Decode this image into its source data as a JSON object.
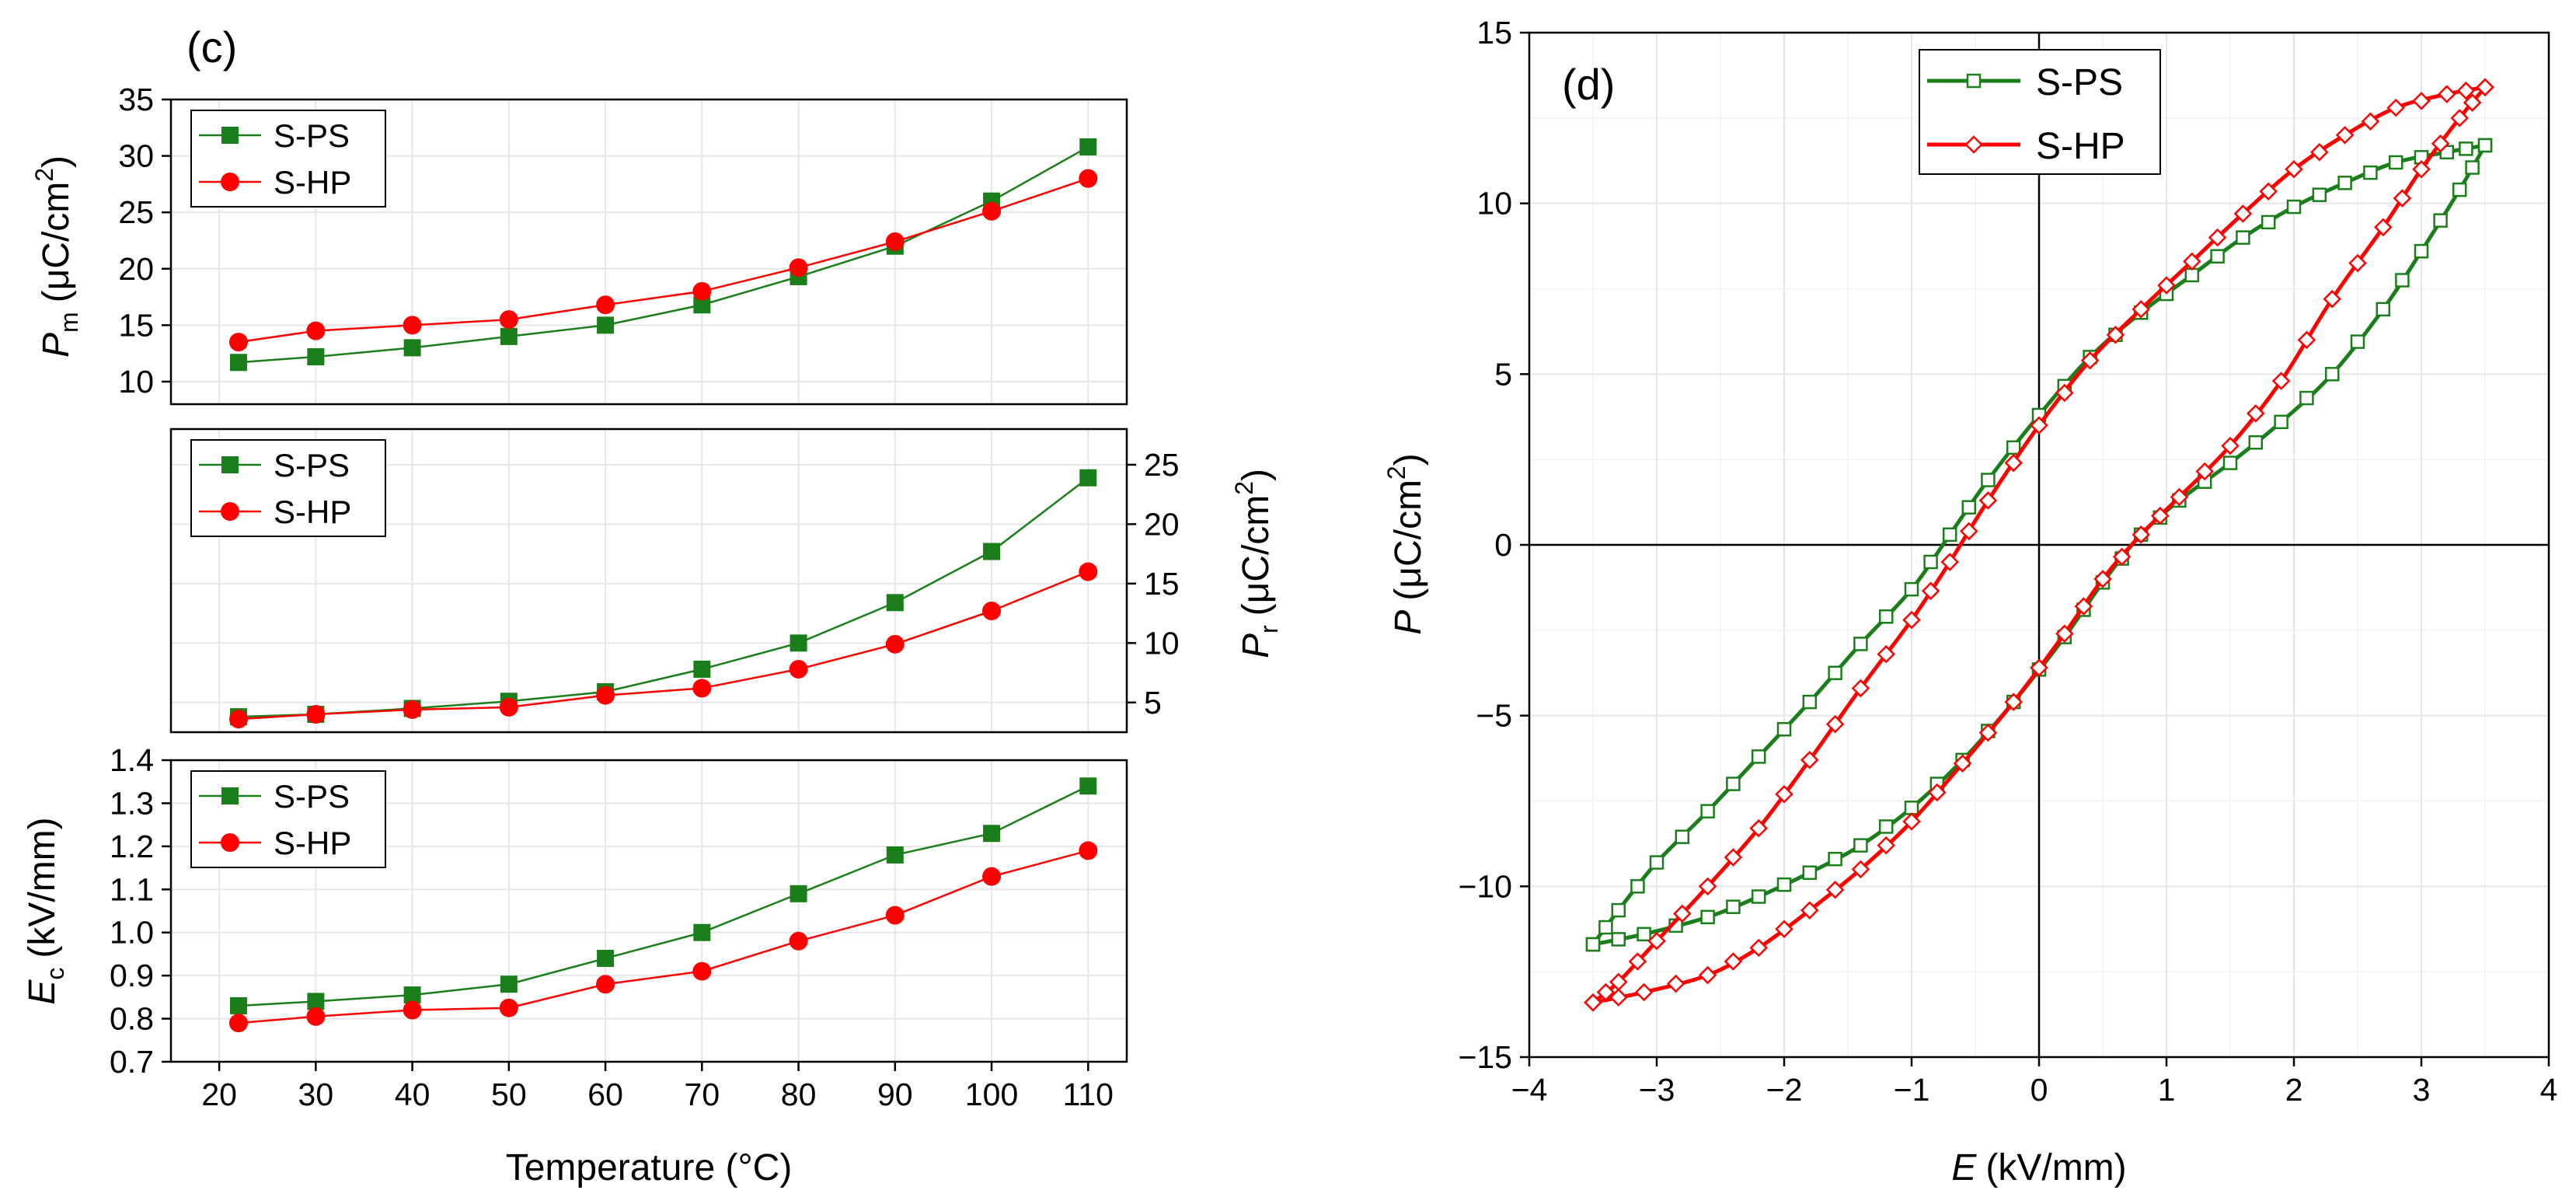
{
  "chart_data": [
    {
      "panel": "(c)",
      "type": "line",
      "subplot": "Pm",
      "ylabel_symbol": "P",
      "ylabel_sub": "m",
      "ylabel_unit": "(μC/cm",
      "ylabel_unit_sup": "2",
      "ylabel_unit_close": ")",
      "ylim": [
        8,
        35
      ],
      "yticks": [
        "10",
        "15",
        "20",
        "25",
        "30",
        "35"
      ],
      "ytick_values": [
        10,
        15,
        20,
        25,
        30,
        35
      ],
      "xlim": [
        15,
        114
      ],
      "x": [
        22,
        30,
        40,
        50,
        60,
        70,
        80,
        90,
        100,
        110
      ],
      "series": [
        {
          "name": "S-PS",
          "color": "#1a7f1a",
          "marker": "square",
          "values": [
            11.7,
            12.2,
            13.0,
            14.0,
            15.0,
            16.8,
            19.3,
            22.0,
            26.0,
            30.8
          ]
        },
        {
          "name": "S-HP",
          "color": "#ff0000",
          "marker": "circle",
          "values": [
            13.5,
            14.5,
            15.0,
            15.5,
            16.8,
            18.0,
            20.1,
            22.4,
            25.1,
            28.0
          ]
        }
      ],
      "legend": [
        "S-PS",
        "S-HP"
      ],
      "legend_position": "top-left",
      "grid": true
    },
    {
      "panel": "(c)",
      "type": "line",
      "subplot": "Pr",
      "ylabel_symbol": "P",
      "ylabel_sub": "r",
      "ylabel_unit": "(μC/cm",
      "ylabel_unit_sup": "2",
      "ylabel_unit_close": ")",
      "ylim": [
        2.5,
        28
      ],
      "yticks": [
        "5",
        "10",
        "15",
        "20",
        "25"
      ],
      "ytick_values": [
        5,
        10,
        15,
        20,
        25
      ],
      "yaxis_side": "right",
      "xlim": [
        15,
        114
      ],
      "x": [
        22,
        30,
        40,
        50,
        60,
        70,
        80,
        90,
        100,
        110
      ],
      "series": [
        {
          "name": "S-PS",
          "color": "#1a7f1a",
          "marker": "square",
          "values": [
            3.8,
            4.0,
            4.5,
            5.1,
            5.9,
            7.8,
            10.0,
            13.4,
            17.7,
            23.9
          ]
        },
        {
          "name": "S-HP",
          "color": "#ff0000",
          "marker": "circle",
          "values": [
            3.6,
            4.0,
            4.4,
            4.6,
            5.6,
            6.2,
            7.8,
            9.9,
            12.7,
            16.0
          ]
        }
      ],
      "legend": [
        "S-PS",
        "S-HP"
      ],
      "legend_position": "top-left",
      "grid": true
    },
    {
      "panel": "(c)",
      "type": "line",
      "subplot": "Ec",
      "ylabel_symbol": "E",
      "ylabel_sub": "c",
      "ylabel_unit": "(kV/mm)",
      "ylim": [
        0.7,
        1.4
      ],
      "yticks": [
        "0.7",
        "0.8",
        "0.9",
        "1.0",
        "1.1",
        "1.2",
        "1.3",
        "1.4"
      ],
      "ytick_values": [
        0.7,
        0.8,
        0.9,
        1.0,
        1.1,
        1.2,
        1.3,
        1.4
      ],
      "xlim": [
        15,
        114
      ],
      "xticks": [
        "20",
        "30",
        "40",
        "50",
        "60",
        "70",
        "80",
        "90",
        "100",
        "110"
      ],
      "xtick_values": [
        20,
        30,
        40,
        50,
        60,
        70,
        80,
        90,
        100,
        110
      ],
      "xlabel": "Temperature (°C)",
      "x": [
        22,
        30,
        40,
        50,
        60,
        70,
        80,
        90,
        100,
        110
      ],
      "series": [
        {
          "name": "S-PS",
          "color": "#1a7f1a",
          "marker": "square",
          "values": [
            0.83,
            0.84,
            0.855,
            0.88,
            0.94,
            1.0,
            1.09,
            1.18,
            1.23,
            1.34
          ]
        },
        {
          "name": "S-HP",
          "color": "#ff0000",
          "marker": "circle",
          "values": [
            0.79,
            0.805,
            0.82,
            0.825,
            0.88,
            0.91,
            0.98,
            1.04,
            1.13,
            1.19
          ]
        }
      ],
      "legend": [
        "S-PS",
        "S-HP"
      ],
      "legend_position": "top-left",
      "grid": true
    },
    {
      "panel": "(d)",
      "type": "line",
      "subplot": "hysteresis",
      "xlabel_symbol": "E",
      "xlabel_unit": "(kV/mm)",
      "ylabel_symbol": "P",
      "ylabel_unit": "(μC/cm",
      "ylabel_unit_sup": "2",
      "ylabel_unit_close": ")",
      "xlim": [
        -4,
        4
      ],
      "ylim": [
        -15,
        15
      ],
      "xticks": [
        "−4",
        "−3",
        "−2",
        "−1",
        "0",
        "1",
        "2",
        "3",
        "4"
      ],
      "xtick_values": [
        -4,
        -3,
        -2,
        -1,
        0,
        1,
        2,
        3,
        4
      ],
      "yticks": [
        "−15",
        "−10",
        "−5",
        "0",
        "5",
        "10",
        "15"
      ],
      "ytick_values": [
        -15,
        -10,
        -5,
        0,
        5,
        10,
        15
      ],
      "series": [
        {
          "name": "S-PS",
          "color": "#1a7f1a",
          "marker": "open-square",
          "upper": [
            [
              3.5,
              11.7
            ],
            [
              3.2,
              11.5
            ],
            [
              2.8,
              11.2
            ],
            [
              2.4,
              10.6
            ],
            [
              2.0,
              9.9
            ],
            [
              1.6,
              9.0
            ],
            [
              1.2,
              7.9
            ],
            [
              0.8,
              6.8
            ],
            [
              0.4,
              5.5
            ],
            [
              0.0,
              3.8
            ],
            [
              -0.4,
              1.9
            ],
            [
              -0.7,
              0.3
            ],
            [
              -1.0,
              -1.3
            ],
            [
              -1.4,
              -2.9
            ],
            [
              -1.8,
              -4.6
            ],
            [
              -2.2,
              -6.2
            ],
            [
              -2.6,
              -7.8
            ],
            [
              -3.0,
              -9.3
            ],
            [
              -3.3,
              -10.7
            ],
            [
              -3.5,
              -11.7
            ]
          ],
          "lower": [
            [
              -3.5,
              -11.7
            ],
            [
              -3.1,
              -11.4
            ],
            [
              -2.6,
              -10.9
            ],
            [
              -2.2,
              -10.3
            ],
            [
              -1.8,
              -9.6
            ],
            [
              -1.4,
              -8.8
            ],
            [
              -1.0,
              -7.7
            ],
            [
              -0.6,
              -6.3
            ],
            [
              -0.2,
              -4.6
            ],
            [
              0.2,
              -2.7
            ],
            [
              0.5,
              -1.1
            ],
            [
              0.8,
              0.3
            ],
            [
              1.1,
              1.3
            ],
            [
              1.5,
              2.4
            ],
            [
              1.9,
              3.6
            ],
            [
              2.3,
              5.0
            ],
            [
              2.7,
              6.9
            ],
            [
              3.0,
              8.6
            ],
            [
              3.3,
              10.4
            ],
            [
              3.5,
              11.7
            ]
          ]
        },
        {
          "name": "S-HP",
          "color": "#ff0000",
          "marker": "open-diamond",
          "upper": [
            [
              3.5,
              13.4
            ],
            [
              3.2,
              13.2
            ],
            [
              2.8,
              12.8
            ],
            [
              2.4,
              12.0
            ],
            [
              2.0,
              11.0
            ],
            [
              1.6,
              9.7
            ],
            [
              1.2,
              8.3
            ],
            [
              0.8,
              6.9
            ],
            [
              0.4,
              5.4
            ],
            [
              0.0,
              3.5
            ],
            [
              -0.4,
              1.3
            ],
            [
              -0.7,
              -0.5
            ],
            [
              -1.0,
              -2.2
            ],
            [
              -1.4,
              -4.2
            ],
            [
              -1.8,
              -6.3
            ],
            [
              -2.2,
              -8.3
            ],
            [
              -2.6,
              -10.0
            ],
            [
              -3.0,
              -11.6
            ],
            [
              -3.3,
              -12.8
            ],
            [
              -3.5,
              -13.4
            ]
          ],
          "lower": [
            [
              -3.5,
              -13.4
            ],
            [
              -3.1,
              -13.1
            ],
            [
              -2.6,
              -12.6
            ],
            [
              -2.2,
              -11.8
            ],
            [
              -1.8,
              -10.7
            ],
            [
              -1.4,
              -9.5
            ],
            [
              -1.0,
              -8.1
            ],
            [
              -0.6,
              -6.4
            ],
            [
              -0.2,
              -4.6
            ],
            [
              0.2,
              -2.6
            ],
            [
              0.5,
              -1.0
            ],
            [
              0.8,
              0.3
            ],
            [
              1.1,
              1.4
            ],
            [
              1.5,
              2.9
            ],
            [
              1.9,
              4.8
            ],
            [
              2.3,
              7.2
            ],
            [
              2.7,
              9.3
            ],
            [
              3.0,
              11.0
            ],
            [
              3.3,
              12.5
            ],
            [
              3.5,
              13.4
            ]
          ]
        }
      ],
      "legend": [
        "S-PS",
        "S-HP"
      ],
      "legend_position": "top-left",
      "grid": true
    }
  ]
}
